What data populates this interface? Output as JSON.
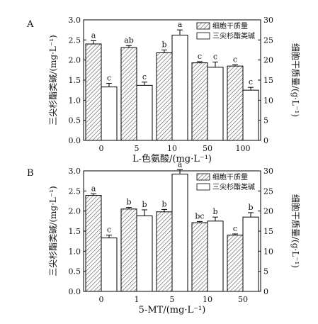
{
  "chart_data": [
    {
      "type": "bar",
      "panel_label": "A",
      "categories": [
        "0",
        "5",
        "10",
        "50",
        "100"
      ],
      "xlabel": "L-色氨酸/(mg·L⁻¹)",
      "ylabel_left": "三尖杉酯类碱/(mg·L⁻¹)",
      "ylabel_right": "细胞干质量/(g·L⁻¹)",
      "left_ylim": [
        0.0,
        3.0
      ],
      "left_ticks": [
        "0.0",
        "0.5",
        "1.0",
        "1.5",
        "2.0",
        "2.5",
        "3.0"
      ],
      "right_ylim": [
        0,
        30
      ],
      "right_ticks": [
        "0",
        "5",
        "10",
        "15",
        "20",
        "25",
        "30"
      ],
      "legend": [
        "细胞干质量",
        "三尖杉酯类碱"
      ],
      "legend_position": "top-right",
      "series": [
        {
          "name": "细胞干质量",
          "axis": "right",
          "pattern": "hatched",
          "values": [
            24.0,
            23.1,
            21.8,
            19.3,
            18.5
          ],
          "errors": [
            0.8,
            0.5,
            0.7,
            0.3,
            0.3
          ],
          "labels": [
            "a",
            "ab",
            "b",
            "c",
            "c"
          ]
        },
        {
          "name": "三尖杉酯类碱",
          "axis": "left",
          "pattern": "white",
          "values": [
            1.33,
            1.37,
            2.62,
            1.82,
            1.25
          ],
          "errors": [
            0.09,
            0.08,
            0.13,
            0.13,
            0.07
          ],
          "labels": [
            "c",
            "c",
            "a",
            "c",
            "c"
          ]
        }
      ]
    },
    {
      "type": "bar",
      "panel_label": "B",
      "categories": [
        "0",
        "1",
        "5",
        "10",
        "50"
      ],
      "xlabel": "5-MT/(mg·L⁻¹)",
      "ylabel_left": "三尖杉酯类碱/(mg·L⁻¹)",
      "ylabel_right": "细胞干质量/(g·L⁻¹)",
      "left_ylim": [
        0.0,
        3.0
      ],
      "left_ticks": [
        "0.0",
        "0.5",
        "1.0",
        "1.5",
        "2.0",
        "2.5",
        "3.0"
      ],
      "right_ylim": [
        0,
        30
      ],
      "right_ticks": [
        "0",
        "5",
        "10",
        "15",
        "20",
        "25",
        "30"
      ],
      "legend": [
        "细胞干质量",
        "三尖杉酯类碱"
      ],
      "legend_position": "top-right",
      "series": [
        {
          "name": "细胞干质量",
          "axis": "right",
          "pattern": "hatched",
          "values": [
            23.9,
            20.5,
            19.8,
            17.1,
            14.0
          ],
          "errors": [
            0.4,
            0.4,
            0.6,
            0.3,
            0.3
          ],
          "labels": [
            "a",
            "b",
            "b",
            "bc",
            "c"
          ]
        },
        {
          "name": "三尖杉酯类碱",
          "axis": "left",
          "pattern": "white",
          "values": [
            1.33,
            1.88,
            2.92,
            1.75,
            1.85
          ],
          "errors": [
            0.07,
            0.15,
            0.11,
            0.1,
            0.11
          ],
          "labels": [
            "c",
            "b",
            "a",
            "b",
            "b"
          ]
        }
      ]
    }
  ]
}
